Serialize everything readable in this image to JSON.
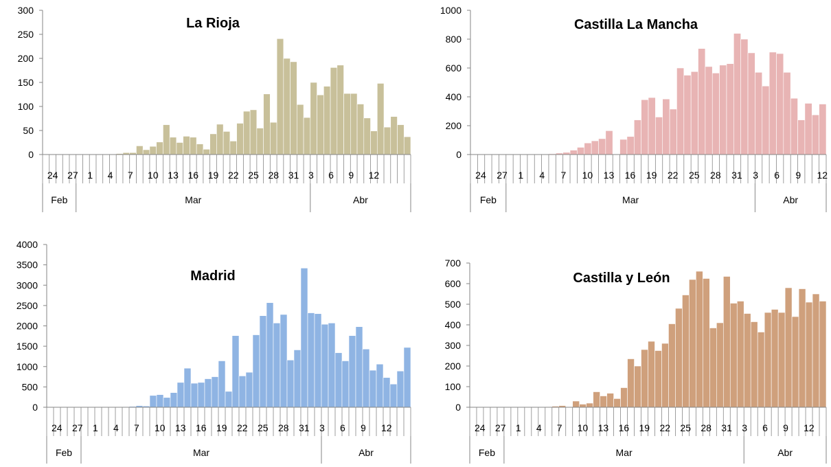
{
  "chart_data": [
    {
      "type": "bar",
      "title": "La Rioja",
      "color": "#c8c09a",
      "ylim": [
        0,
        300
      ],
      "yticks": [
        "0",
        "50",
        "100",
        "150",
        "200",
        "250",
        "300"
      ],
      "xtick_labels": [
        "24",
        "27",
        "1",
        "4",
        "7",
        "10",
        "13",
        "16",
        "19",
        "22",
        "25",
        "28",
        "31",
        "3",
        "6",
        "9",
        "12"
      ],
      "months": [
        "Feb",
        "Mar",
        "Abr"
      ],
      "values": [
        0,
        0,
        0,
        0,
        0,
        0,
        0,
        0,
        0,
        0,
        0,
        2,
        4,
        4,
        18,
        10,
        17,
        26,
        62,
        36,
        25,
        38,
        36,
        22,
        11,
        43,
        63,
        48,
        28,
        65,
        90,
        93,
        55,
        126,
        67,
        241,
        200,
        193,
        104,
        77,
        150,
        124,
        142,
        181,
        186,
        127,
        127,
        105,
        76,
        49,
        148,
        57,
        79,
        62,
        37
      ]
    },
    {
      "type": "bar",
      "title": "Castilla La Mancha",
      "color": "#e8b4b4",
      "ylim": [
        0,
        1000
      ],
      "yticks": [
        "0",
        "200",
        "400",
        "600",
        "800",
        "1000"
      ],
      "xtick_labels": [
        "24",
        "27",
        "1",
        "4",
        "7",
        "10",
        "13",
        "16",
        "19",
        "22",
        "25",
        "28",
        "31",
        "3",
        "6",
        "9",
        "12"
      ],
      "months": [
        "Feb",
        "Mar",
        "Abr"
      ],
      "values": [
        0,
        0,
        0,
        0,
        0,
        0,
        2,
        2,
        2,
        2,
        2,
        5,
        10,
        15,
        30,
        50,
        80,
        95,
        110,
        165,
        0,
        105,
        125,
        240,
        380,
        395,
        260,
        385,
        315,
        600,
        550,
        575,
        735,
        610,
        565,
        620,
        630,
        840,
        800,
        705,
        570,
        475,
        710,
        700,
        570,
        390,
        240,
        355,
        275,
        350
      ]
    },
    {
      "type": "bar",
      "title": "Madrid",
      "color": "#8fb4e3",
      "ylim": [
        0,
        4000
      ],
      "yticks": [
        "0",
        "500",
        "1000",
        "1500",
        "2000",
        "2500",
        "3000",
        "3500",
        "4000"
      ],
      "xtick_labels": [
        "24",
        "27",
        "1",
        "4",
        "7",
        "10",
        "13",
        "16",
        "19",
        "22",
        "25",
        "28",
        "31",
        "3",
        "6",
        "9",
        "12"
      ],
      "months": [
        "Feb",
        "Mar",
        "Abr"
      ],
      "values": [
        0,
        0,
        0,
        0,
        0,
        0,
        0,
        0,
        0,
        0,
        0,
        10,
        20,
        40,
        30,
        290,
        310,
        240,
        360,
        610,
        960,
        590,
        610,
        700,
        750,
        1140,
        390,
        1760,
        770,
        860,
        1780,
        2250,
        2570,
        2070,
        2280,
        1160,
        1410,
        3420,
        2320,
        2300,
        2040,
        2070,
        1340,
        1140,
        1760,
        1980,
        1430,
        910,
        1060,
        730,
        570,
        890,
        1470
      ]
    },
    {
      "type": "bar",
      "title": "Castilla y León",
      "color": "#cfa07c",
      "ylim": [
        0,
        700
      ],
      "yticks": [
        "0",
        "100",
        "200",
        "300",
        "400",
        "500",
        "600",
        "700"
      ],
      "xtick_labels": [
        "24",
        "27",
        "1",
        "4",
        "7",
        "10",
        "13",
        "16",
        "19",
        "22",
        "25",
        "28",
        "31",
        "3",
        "6",
        "9",
        "12"
      ],
      "months": [
        "Feb",
        "Mar",
        "Abr"
      ],
      "values": [
        0,
        0,
        0,
        0,
        0,
        0,
        0,
        0,
        0,
        0,
        0,
        2,
        5,
        8,
        2,
        30,
        15,
        20,
        75,
        55,
        68,
        42,
        95,
        235,
        200,
        280,
        320,
        275,
        310,
        405,
        480,
        545,
        620,
        660,
        625,
        385,
        410,
        635,
        505,
        515,
        455,
        415,
        365,
        460,
        475,
        460,
        580,
        440,
        575,
        510,
        550,
        515
      ]
    }
  ]
}
